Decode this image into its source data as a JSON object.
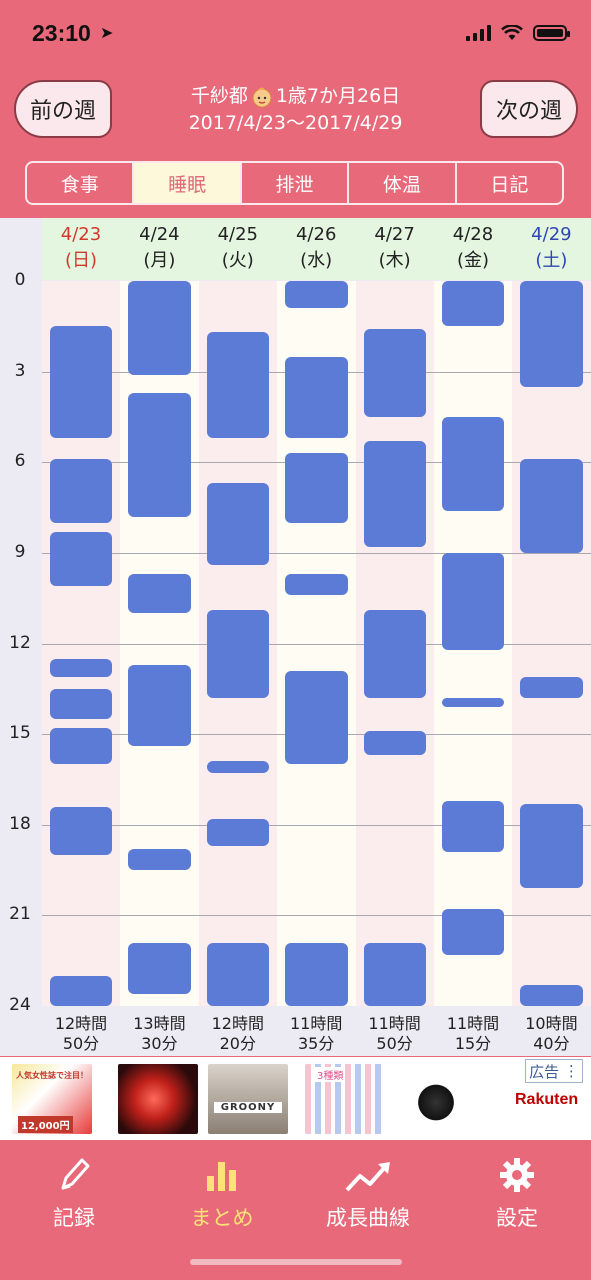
{
  "status_bar": {
    "time": "23:10"
  },
  "header": {
    "prev_label": "前の週",
    "next_label": "次の週",
    "child_name": "千紗都",
    "child_age": "1歳7か月26日",
    "range": "2017/4/23〜2017/4/29"
  },
  "tabs": [
    {
      "label": "食事",
      "active": false
    },
    {
      "label": "睡眠",
      "active": true
    },
    {
      "label": "排泄",
      "active": false
    },
    {
      "label": "体温",
      "active": false
    },
    {
      "label": "日記",
      "active": false
    }
  ],
  "chart_data": {
    "type": "bar",
    "y_axis": {
      "min": 0,
      "max": 24,
      "ticks": [
        "0",
        "3",
        "6",
        "9",
        "12",
        "15",
        "18",
        "21",
        "24"
      ],
      "inverted": true
    },
    "grid": true,
    "days": [
      {
        "date": "4/23",
        "weekday": "(日)",
        "total_hours": "12時間",
        "total_minutes": "50分",
        "sleeps": [
          [
            1.5,
            5.2
          ],
          [
            5.9,
            8.0
          ],
          [
            8.3,
            10.1
          ],
          [
            12.5,
            13.1
          ],
          [
            13.5,
            14.5
          ],
          [
            14.8,
            16.0
          ],
          [
            17.4,
            19.0
          ],
          [
            23.0,
            24.0
          ]
        ]
      },
      {
        "date": "4/24",
        "weekday": "(月)",
        "total_hours": "13時間",
        "total_minutes": "30分",
        "sleeps": [
          [
            0.0,
            3.1
          ],
          [
            3.7,
            7.8
          ],
          [
            9.7,
            11.0
          ],
          [
            12.7,
            15.4
          ],
          [
            18.8,
            19.5
          ],
          [
            21.9,
            23.6
          ]
        ]
      },
      {
        "date": "4/25",
        "weekday": "(火)",
        "total_hours": "12時間",
        "total_minutes": "20分",
        "sleeps": [
          [
            1.7,
            5.2
          ],
          [
            6.7,
            9.4
          ],
          [
            10.9,
            13.8
          ],
          [
            15.9,
            16.3
          ],
          [
            17.8,
            18.7
          ],
          [
            21.9,
            24.0
          ]
        ]
      },
      {
        "date": "4/26",
        "weekday": "(水)",
        "total_hours": "11時間",
        "total_minutes": "35分",
        "sleeps": [
          [
            0.0,
            0.9
          ],
          [
            2.5,
            5.2
          ],
          [
            5.7,
            8.0
          ],
          [
            9.7,
            10.4
          ],
          [
            12.9,
            16.0
          ],
          [
            21.9,
            24.0
          ]
        ]
      },
      {
        "date": "4/27",
        "weekday": "(木)",
        "total_hours": "11時間",
        "total_minutes": "50分",
        "sleeps": [
          [
            1.6,
            4.5
          ],
          [
            5.3,
            8.8
          ],
          [
            10.9,
            13.8
          ],
          [
            14.9,
            15.7
          ],
          [
            21.9,
            24.0
          ]
        ]
      },
      {
        "date": "4/28",
        "weekday": "(金)",
        "total_hours": "11時間",
        "total_minutes": "15分",
        "sleeps": [
          [
            0.0,
            1.5
          ],
          [
            4.5,
            7.6
          ],
          [
            9.0,
            12.2
          ],
          [
            13.8,
            14.1
          ],
          [
            17.2,
            18.9
          ],
          [
            20.8,
            22.3
          ]
        ]
      },
      {
        "date": "4/29",
        "weekday": "(土)",
        "total_hours": "10時間",
        "total_minutes": "40分",
        "sleeps": [
          [
            0.0,
            3.5
          ],
          [
            5.9,
            9.0
          ],
          [
            13.1,
            13.8
          ],
          [
            17.3,
            20.1
          ],
          [
            23.3,
            24.0
          ]
        ]
      }
    ],
    "colors": {
      "bar": "#5b7bd6",
      "sunday": "#d23a2a",
      "saturday": "#2f46b5"
    }
  },
  "ads": {
    "label": "広告",
    "sponsor": "Rakuten",
    "items": [
      "ad-1",
      "ad-2",
      "ad-3",
      "ad-4",
      "ad-5"
    ]
  },
  "ad_texts": {
    "ad1_line": "人気女性誌で注目！",
    "ad1_price": "12,000円",
    "ad3_brand": "GROONY",
    "ad4_text": "3種類"
  },
  "bottom_tabs": [
    {
      "label": "記録",
      "icon": "pencil-icon",
      "active": false
    },
    {
      "label": "まとめ",
      "icon": "bar-chart-icon",
      "active": true
    },
    {
      "label": "成長曲線",
      "icon": "trend-up-icon",
      "active": false
    },
    {
      "label": "設定",
      "icon": "gear-icon",
      "active": false
    }
  ],
  "theme": {
    "primary": "#e8697a",
    "tab_active_bg": "#fdf8d9"
  }
}
